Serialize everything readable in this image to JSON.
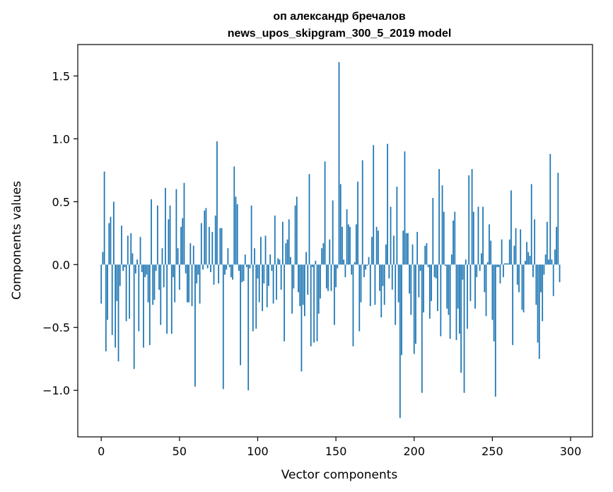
{
  "chart_data": {
    "type": "bar",
    "title": "оп александр бречалов",
    "subtitle": "news_upos_skipgram_300_5_2019 model",
    "xlabel": "Vector components",
    "ylabel": "Components values",
    "xlim": [
      -15,
      314
    ],
    "ylim": [
      -1.37,
      1.75
    ],
    "xticks": [
      0,
      50,
      100,
      150,
      200,
      250,
      300
    ],
    "xtick_labels": [
      "0",
      "50",
      "100",
      "150",
      "200",
      "250",
      "300"
    ],
    "yticks": [
      -1.0,
      -0.5,
      0.0,
      0.5,
      1.0,
      1.5
    ],
    "ytick_labels": [
      "−1.0",
      "−0.5",
      "0.0",
      "0.5",
      "1.0",
      "1.5"
    ],
    "grid": false,
    "color": "#1f77b4",
    "bar_width": 0.8,
    "values": [
      -0.31,
      0.1,
      0.74,
      -0.69,
      -0.44,
      0.33,
      0.38,
      -0.56,
      0.5,
      -0.66,
      -0.29,
      -0.77,
      -0.17,
      0.31,
      -0.05,
      -0.02,
      -0.45,
      0.23,
      -0.43,
      0.25,
      0.09,
      -0.83,
      -0.07,
      0.04,
      -0.53,
      0.22,
      -0.06,
      -0.66,
      -0.1,
      -0.08,
      -0.3,
      -0.64,
      0.52,
      -0.32,
      -0.28,
      -0.05,
      0.47,
      -0.2,
      -0.48,
      0.13,
      -0.18,
      0.61,
      -0.55,
      0.36,
      0.47,
      -0.55,
      -0.1,
      -0.3,
      0.6,
      0.13,
      -0.2,
      0.3,
      0.37,
      0.65,
      -0.07,
      -0.3,
      -0.3,
      0.17,
      -0.33,
      0.15,
      -0.97,
      -0.15,
      -0.08,
      -0.31,
      0.33,
      -0.04,
      0.43,
      0.45,
      -0.03,
      0.3,
      -0.06,
      0.26,
      -0.16,
      0.39,
      0.98,
      -0.15,
      0.29,
      0.29,
      -0.99,
      -0.08,
      -0.04,
      0.13,
      -0.02,
      -0.1,
      -0.12,
      0.78,
      0.54,
      0.48,
      -0.05,
      -0.8,
      -0.14,
      -0.13,
      0.08,
      -0.02,
      -1.0,
      -0.03,
      0.47,
      -0.53,
      0.13,
      -0.51,
      -0.11,
      -0.3,
      0.22,
      -0.37,
      -0.15,
      0.23,
      -0.34,
      -0.17,
      0.08,
      -0.05,
      -0.31,
      0.39,
      -0.28,
      0.05,
      0.04,
      -0.2,
      0.34,
      -0.61,
      0.17,
      0.2,
      0.36,
      0.06,
      -0.39,
      -0.19,
      0.47,
      0.54,
      -0.22,
      -0.33,
      -0.85,
      -0.32,
      -0.41,
      0.1,
      -0.24,
      0.72,
      -0.65,
      -0.02,
      -0.62,
      0.03,
      -0.61,
      -0.39,
      -0.27,
      0.13,
      0.17,
      0.82,
      -0.19,
      -0.21,
      0.2,
      -0.21,
      0.51,
      -0.48,
      -0.18,
      -0.03,
      1.61,
      0.64,
      0.3,
      0.04,
      -0.1,
      0.44,
      0.32,
      0.3,
      -0.08,
      -0.65,
      0.02,
      0.32,
      0.66,
      -0.53,
      -0.3,
      0.83,
      -0.1,
      -0.04,
      -0.01,
      0.06,
      -0.33,
      0.22,
      0.95,
      -0.32,
      0.3,
      0.27,
      -0.21,
      -0.42,
      -0.17,
      -0.32,
      0.16,
      0.96,
      -0.11,
      0.46,
      -0.2,
      0.23,
      -0.48,
      0.62,
      -0.3,
      -1.22,
      -0.72,
      0.27,
      0.9,
      0.25,
      0.25,
      -0.23,
      -0.4,
      0.16,
      -0.71,
      -0.63,
      0.26,
      -0.26,
      -0.05,
      -1.02,
      -0.38,
      0.15,
      0.17,
      -0.02,
      -0.43,
      -0.29,
      0.53,
      -0.1,
      -0.11,
      -0.37,
      0.76,
      -0.57,
      0.63,
      0.42,
      -0.01,
      -0.35,
      -0.4,
      -0.59,
      0.08,
      0.35,
      0.42,
      -0.6,
      -0.35,
      -0.55,
      -0.86,
      -0.12,
      -1.02,
      0.04,
      -0.51,
      0.71,
      -0.29,
      0.76,
      0.42,
      -0.35,
      -0.1,
      0.46,
      -0.05,
      0.09,
      0.46,
      -0.22,
      -0.41,
      0.02,
      0.32,
      0.19,
      -0.44,
      -0.61,
      -1.05,
      -0.02,
      -0.02,
      -0.15,
      0.2,
      -0.1,
      0.01,
      0.01,
      0.01,
      0.2,
      0.59,
      -0.64,
      0.15,
      0.29,
      -0.16,
      -0.22,
      0.28,
      -0.36,
      -0.38,
      0.03,
      0.18,
      0.1,
      0.07,
      0.64,
      -0.1,
      0.36,
      -0.32,
      -0.62,
      -0.75,
      -0.22,
      -0.45,
      -0.08,
      0.08,
      0.34,
      0.04,
      0.88,
      0.04,
      -0.25,
      0.12,
      0.3,
      0.73,
      -0.14
    ]
  }
}
